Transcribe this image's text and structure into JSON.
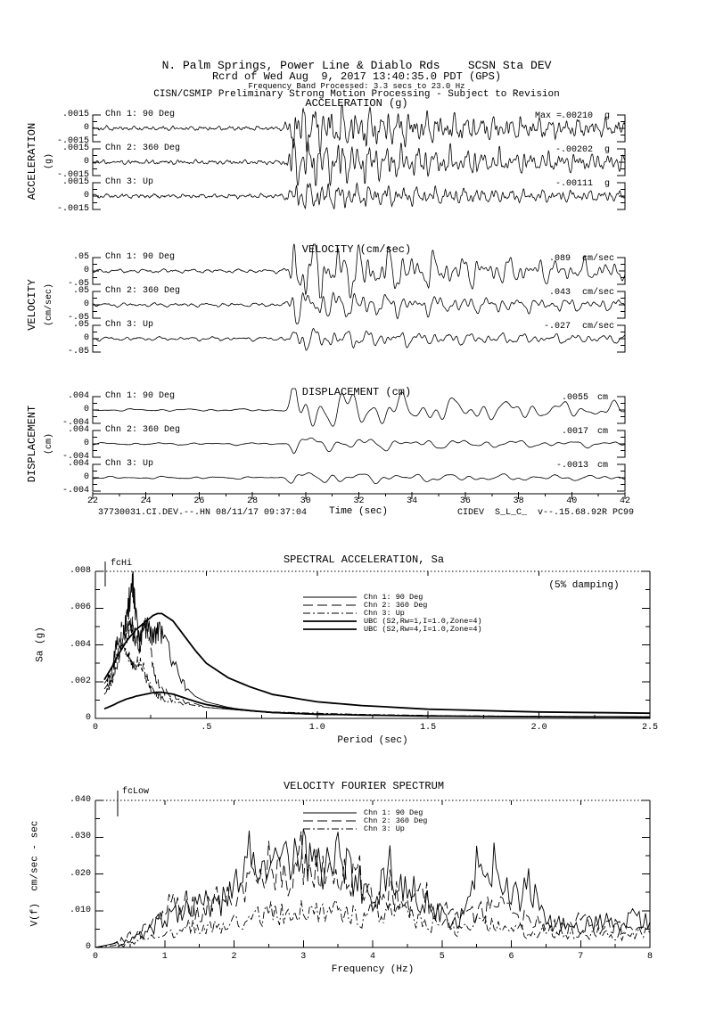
{
  "header": {
    "line1": "N. Palm Springs, Power Line & Diablo Rds    SCSN Sta DEV",
    "line2": "Rcrd of Wed Aug  9, 2017 13:40:35.0 PDT (GPS)",
    "line3": "Frequency Band Processed: 3.3 secs to 23.0 Hz",
    "line4": "CISN/CSMIP Preliminary Strong Motion Processing - Subject to Revision"
  },
  "sections": {
    "acceleration": {
      "title": "ACCELERATION (g)",
      "side_label": "ACCELERATION",
      "side_unit": "(g)",
      "ticks": [
        ".0015",
        "0",
        "-.0015"
      ],
      "max_prefix": "Max =",
      "channels": [
        {
          "label": "Chn 1: 90 Deg",
          "max": ".00210",
          "unit": "g"
        },
        {
          "label": "Chn 2: 360 Deg",
          "max": "-.00202",
          "unit": "g"
        },
        {
          "label": "Chn 3: Up",
          "max": "-.00111",
          "unit": "g"
        }
      ]
    },
    "velocity": {
      "title": "VELOCITY (cm/sec)",
      "side_label": "VELOCITY",
      "side_unit": "(cm/sec)",
      "ticks": [
        ".05",
        "0",
        "-.05"
      ],
      "max_prefix": "",
      "channels": [
        {
          "label": "Chn 1: 90 Deg",
          "max": ".089",
          "unit": "cm/sec"
        },
        {
          "label": "Chn 2: 360 Deg",
          "max": ".043",
          "unit": "cm/sec"
        },
        {
          "label": "Chn 3: Up",
          "max": "-.027",
          "unit": "cm/sec"
        }
      ]
    },
    "displacement": {
      "title": "DISPLACEMENT (cm)",
      "side_label": "DISPLACEMENT",
      "side_unit": "(cm)",
      "ticks": [
        ".004",
        "0",
        "-.004"
      ],
      "max_prefix": "",
      "channels": [
        {
          "label": "Chn 1: 90 Deg",
          "max": ".0055",
          "unit": "cm"
        },
        {
          "label": "Chn 2: 360 Deg",
          "max": ".0017",
          "unit": "cm"
        },
        {
          "label": "Chn 3: Up",
          "max": "-.0013",
          "unit": "cm"
        }
      ]
    }
  },
  "time_axis": {
    "ticks": [
      "22",
      "24",
      "26",
      "28",
      "30",
      "32",
      "34",
      "36",
      "38",
      "40",
      "42"
    ],
    "label": "Time (sec)"
  },
  "footer": {
    "left": "37730031.CI.DEV.--.HN 08/11/17 09:37:04",
    "right": "CIDEV  S_L_C_  v--.15.68.92R PC99"
  },
  "sa_plot": {
    "title": "SPECTRAL ACCELERATION, Sa",
    "damping_note": "(5% damping)",
    "marker": "fcHi",
    "ylabel": "Sa (g)",
    "xlabel": "Period (sec)",
    "yticks": [
      ".008",
      ".006",
      ".004",
      ".002",
      "0"
    ],
    "xticks": [
      "0",
      ".5",
      "1.0",
      "1.5",
      "2.0",
      "2.5"
    ],
    "legend": [
      "Chn 1: 90 Deg",
      "Chn 2: 360 Deg",
      "Chn 3: Up",
      "UBC (S2,Rw=1,I=1.0,Zone=4)",
      "UBC (S2,Rw=4,I=1.0,Zone=4)"
    ]
  },
  "fourier_plot": {
    "title": "VELOCITY FOURIER SPECTRUM",
    "marker": "fcLow",
    "ylabel": "V(f)  cm/sec - sec",
    "xlabel": "Frequency (Hz)",
    "yticks": [
      ".040",
      ".030",
      ".020",
      ".010",
      "0"
    ],
    "xticks": [
      "0",
      "1",
      "2",
      "3",
      "4",
      "5",
      "6",
      "7",
      "8"
    ],
    "legend": [
      "Chn 1: 90 Deg",
      "Chn 2: 360 Deg",
      "Chn 3: Up"
    ]
  },
  "chart_data": [
    {
      "type": "line",
      "title": "SPECTRAL ACCELERATION, Sa",
      "xlabel": "Period (sec)",
      "ylabel": "Sa (g)",
      "xlim": [
        0,
        2.5
      ],
      "ylim": [
        0,
        0.008
      ],
      "damping": "5%",
      "legend_position": "top-center-inside",
      "x": [
        0.04,
        0.06,
        0.08,
        0.1,
        0.12,
        0.14,
        0.16,
        0.17,
        0.18,
        0.2,
        0.22,
        0.24,
        0.26,
        0.28,
        0.3,
        0.35,
        0.4,
        0.45,
        0.5,
        0.6,
        0.7,
        0.8,
        1.0,
        1.2,
        1.5,
        2.0,
        2.5
      ],
      "series": [
        {
          "name": "Chn 1: 90 Deg",
          "style": "solid",
          "values": [
            0.0019,
            0.0022,
            0.0028,
            0.0045,
            0.004,
            0.0055,
            0.0068,
            0.0072,
            0.0058,
            0.004,
            0.005,
            0.0052,
            0.0043,
            0.0049,
            0.0046,
            0.0031,
            0.0018,
            0.0012,
            0.0009,
            0.0006,
            0.0004,
            0.0003,
            0.0002,
            0.00018,
            0.00014,
            0.0001,
            8e-05
          ]
        },
        {
          "name": "Chn 2: 360 Deg",
          "style": "long-dash",
          "values": [
            0.0016,
            0.0019,
            0.0026,
            0.0038,
            0.005,
            0.0046,
            0.0052,
            0.0048,
            0.0044,
            0.0036,
            0.0052,
            0.0045,
            0.0028,
            0.002,
            0.0016,
            0.0012,
            0.0009,
            0.0008,
            0.0006,
            0.0005,
            0.0004,
            0.0003,
            0.00022,
            0.00018,
            0.00013,
            0.0001,
            8e-05
          ]
        },
        {
          "name": "Chn 3: Up",
          "style": "dash-dot",
          "values": [
            0.0013,
            0.0016,
            0.0022,
            0.003,
            0.0042,
            0.0036,
            0.0032,
            0.003,
            0.0028,
            0.0033,
            0.0026,
            0.0019,
            0.0015,
            0.0013,
            0.0011,
            0.0009,
            0.0008,
            0.0007,
            0.0006,
            0.0005,
            0.0004,
            0.00035,
            0.00028,
            0.00022,
            0.00016,
            0.00011,
            9e-05
          ]
        },
        {
          "name": "UBC (S2,Rw=1,I=1.0,Zone=4)",
          "style": "thick-solid",
          "values": [
            0.0021,
            0.0025,
            0.0029,
            0.0034,
            0.0038,
            0.0042,
            0.0045,
            0.0046,
            0.0048,
            0.005,
            0.0052,
            0.0054,
            0.0056,
            0.0057,
            0.0057,
            0.0053,
            0.0045,
            0.0037,
            0.003,
            0.0022,
            0.0017,
            0.0013,
            0.0009,
            0.0007,
            0.0005,
            0.00035,
            0.00028
          ]
        },
        {
          "name": "UBC (S2,Rw=4,I=1.0,Zone=4)",
          "style": "thick-solid",
          "values": [
            0.00052,
            0.00062,
            0.00072,
            0.00085,
            0.00095,
            0.00105,
            0.00112,
            0.00115,
            0.0012,
            0.00125,
            0.0013,
            0.00135,
            0.0014,
            0.00142,
            0.00142,
            0.00132,
            0.00112,
            0.00092,
            0.00075,
            0.00055,
            0.00042,
            0.00032,
            0.00023,
            0.00018,
            0.00013,
            9e-05,
            7e-05
          ]
        }
      ]
    },
    {
      "type": "line",
      "title": "VELOCITY FOURIER SPECTRUM",
      "xlabel": "Frequency (Hz)",
      "ylabel": "V(f)  cm/sec - sec",
      "xlim": [
        0,
        8
      ],
      "ylim": [
        0,
        0.04
      ],
      "legend_position": "top-center-inside",
      "x": [
        0,
        0.25,
        0.5,
        0.75,
        1,
        1.25,
        1.5,
        1.75,
        2,
        2.25,
        2.5,
        2.75,
        3,
        3.25,
        3.5,
        3.75,
        4,
        4.25,
        4.5,
        4.75,
        5,
        5.25,
        5.5,
        5.75,
        6,
        6.25,
        6.5,
        6.75,
        7,
        7.25,
        7.5,
        7.75,
        8
      ],
      "series": [
        {
          "name": "Chn 1: 90 Deg",
          "style": "solid",
          "values": [
            0,
            0.001,
            0.002,
            0.004,
            0.008,
            0.011,
            0.013,
            0.01,
            0.016,
            0.027,
            0.019,
            0.024,
            0.027,
            0.021,
            0.026,
            0.018,
            0.014,
            0.021,
            0.017,
            0.012,
            0.009,
            0.008,
            0.021,
            0.023,
            0.012,
            0.017,
            0.007,
            0.006,
            0.005,
            0.008,
            0.006,
            0.009,
            0.007
          ]
        },
        {
          "name": "Chn 2: 360 Deg",
          "style": "long-dash",
          "values": [
            0,
            0.001,
            0.003,
            0.005,
            0.01,
            0.013,
            0.01,
            0.015,
            0.012,
            0.019,
            0.023,
            0.018,
            0.025,
            0.02,
            0.017,
            0.021,
            0.013,
            0.016,
            0.011,
            0.014,
            0.01,
            0.007,
            0.009,
            0.011,
            0.009,
            0.007,
            0.006,
            0.005,
            0.007,
            0.005,
            0.006,
            0.004,
            0.005
          ]
        },
        {
          "name": "Chn 3: Up",
          "style": "dash-dot",
          "values": [
            0,
            0.0005,
            0.001,
            0.002,
            0.003,
            0.005,
            0.006,
            0.005,
            0.008,
            0.007,
            0.01,
            0.009,
            0.011,
            0.009,
            0.01,
            0.008,
            0.009,
            0.011,
            0.008,
            0.007,
            0.006,
            0.005,
            0.007,
            0.006,
            0.005,
            0.004,
            0.005,
            0.004,
            0.003,
            0.004,
            0.003,
            0.004,
            0.004
          ]
        }
      ]
    },
    {
      "type": "waveform",
      "title": "Strong motion time histories, 3 channels per quantity",
      "x_range_sec": [
        22,
        42
      ],
      "event_start_sec": 29.2,
      "groups": [
        {
          "name": "ACCELERATION (g)",
          "full_scale": 0.0015,
          "peaks": [
            0.0021,
            -0.00202,
            -0.00111
          ]
        },
        {
          "name": "VELOCITY (cm/sec)",
          "full_scale": 0.05,
          "peaks": [
            0.089,
            0.043,
            -0.027
          ]
        },
        {
          "name": "DISPLACEMENT (cm)",
          "full_scale": 0.004,
          "peaks": [
            0.0055,
            0.0017,
            -0.0013
          ]
        }
      ]
    }
  ]
}
